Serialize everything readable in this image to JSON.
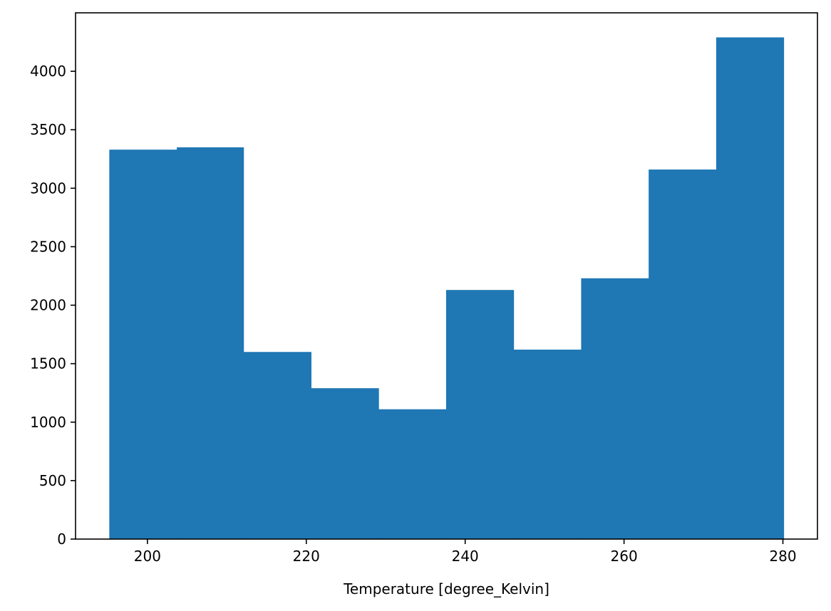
{
  "chart_data": {
    "type": "bar",
    "subtype": "histogram",
    "xlabel": "Temperature [degree_Kelvin]",
    "ylabel": "",
    "title": "",
    "bins": [
      {
        "x0": 195.2,
        "x1": 203.7,
        "count": 3330
      },
      {
        "x0": 203.7,
        "x1": 212.1,
        "count": 3350
      },
      {
        "x0": 212.1,
        "x1": 220.6,
        "count": 1600
      },
      {
        "x0": 220.6,
        "x1": 229.1,
        "count": 1290
      },
      {
        "x0": 229.1,
        "x1": 237.6,
        "count": 1110
      },
      {
        "x0": 237.6,
        "x1": 246.1,
        "count": 2130
      },
      {
        "x0": 246.1,
        "x1": 254.6,
        "count": 1620
      },
      {
        "x0": 254.6,
        "x1": 263.1,
        "count": 2230
      },
      {
        "x0": 263.1,
        "x1": 271.6,
        "count": 3160
      },
      {
        "x0": 271.6,
        "x1": 280.1,
        "count": 4290
      }
    ],
    "xlim": [
      190.95,
      284.35
    ],
    "ylim": [
      0,
      4500
    ],
    "xticks": [
      200,
      220,
      240,
      260,
      280
    ],
    "yticks": [
      0,
      500,
      1000,
      1500,
      2000,
      2500,
      3000,
      3500,
      4000
    ],
    "bar_color": "#1f77b4",
    "grid": false,
    "legend": "none"
  }
}
